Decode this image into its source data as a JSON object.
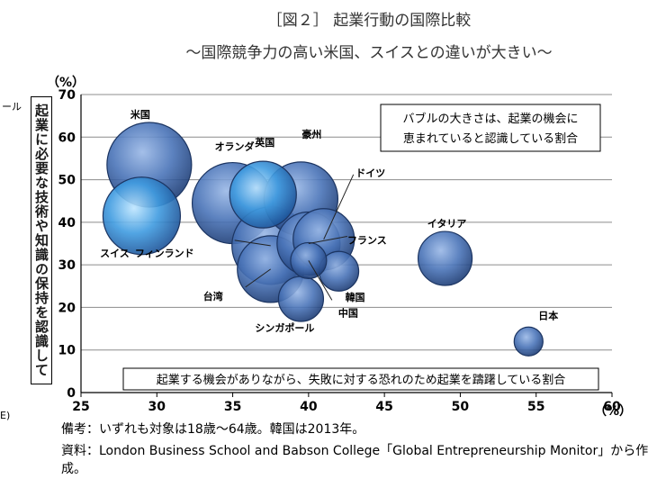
{
  "header": {
    "title": "［図２］ 起業行動の国際比較",
    "subtitle": "～国際競争力の高い米国、スイスとの違いが大きい～"
  },
  "cutoff": {
    "left_top": "ール",
    "left_bottom": "E)"
  },
  "chart_data": {
    "type": "bubble",
    "xlim": [
      25,
      60
    ],
    "ylim": [
      0,
      70
    ],
    "x_ticks": [
      25,
      30,
      35,
      40,
      45,
      50,
      55,
      60
    ],
    "y_ticks": [
      0,
      10,
      20,
      30,
      40,
      50,
      60,
      70
    ],
    "x_unit": "（%）",
    "y_unit": "（%）",
    "ylabel": "起業に必要な技術や知識の保持を認識している割合",
    "xlabel_box": "起業する機会がありながら、失敗に対する恐れのため起業を躊躇している割合",
    "bubble_note": "バブルの大きさは、起業の機会に恵まれていると認識している割合",
    "grid": "horizontal",
    "points": [
      {
        "label": "米国",
        "x": 29.5,
        "y": 53.5,
        "size": 47,
        "highlight": false
      },
      {
        "label": "スイス",
        "x": 29.0,
        "y": 41.5,
        "size": 43,
        "highlight": true
      },
      {
        "label": "オランダ",
        "x": 35.0,
        "y": 44.5,
        "size": 45,
        "highlight": false
      },
      {
        "label": "英国",
        "x": 37.0,
        "y": 46.5,
        "size": 37,
        "highlight": true
      },
      {
        "label": "豪州",
        "x": 39.5,
        "y": 45.5,
        "size": 41,
        "highlight": false
      },
      {
        "label": "フィンランド",
        "x": 37.5,
        "y": 34.5,
        "size": 43,
        "highlight": false
      },
      {
        "label": "ドイツ",
        "x": 41.0,
        "y": 36.0,
        "size": 34,
        "highlight": false
      },
      {
        "label": "フランス",
        "x": 40.0,
        "y": 35.0,
        "size": 35,
        "highlight": false
      },
      {
        "label": "台湾",
        "x": 37.5,
        "y": 29.0,
        "size": 37,
        "highlight": false
      },
      {
        "label": "イタリア",
        "x": 49.0,
        "y": 31.5,
        "size": 30,
        "highlight": false
      },
      {
        "label": "韓国",
        "x": 42.0,
        "y": 28.5,
        "size": 22,
        "highlight": false
      },
      {
        "label": "シンガポール",
        "x": 39.5,
        "y": 22.0,
        "size": 25,
        "highlight": false
      },
      {
        "label": "中国",
        "x": 40.0,
        "y": 31.0,
        "size": 20,
        "highlight": false
      },
      {
        "label": "日本",
        "x": 54.5,
        "y": 12.0,
        "size": 16,
        "highlight": false
      }
    ]
  },
  "footer": {
    "note1": "備考：いずれも対象は18歳～64歳。韓国は2013年。",
    "note2": "資料：London Business School and Babson College「Global Entrepreneurship Monitor」から作成。"
  }
}
